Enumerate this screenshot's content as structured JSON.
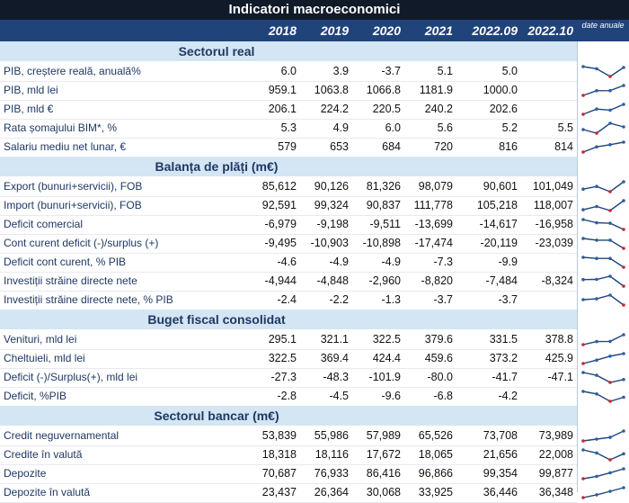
{
  "title": "Indicatori macroeconomici",
  "columns": [
    "2018",
    "2019",
    "2020",
    "2021",
    "2022.09",
    "2022.10"
  ],
  "sparkline_header": "date anuale",
  "colors": {
    "title_bg": "#111a28",
    "header_bg": "#20437a",
    "section_bg": "#d4e6f4",
    "label_text": "#1f3864",
    "spark_line": "#20437a",
    "spark_point": "#2b5fa3",
    "spark_low": "#d0242b"
  },
  "sections": [
    {
      "title": "Sectorul real",
      "rows": [
        {
          "label": "PIB, creștere reală, anuală%",
          "values": [
            "6.0",
            "3.9",
            "-3.7",
            "5.1",
            "5.0",
            ""
          ],
          "spark": [
            6.0,
            3.9,
            -3.7,
            5.1
          ]
        },
        {
          "label": "PIB, mld lei",
          "values": [
            "959.1",
            "1063.8",
            "1066.8",
            "1181.9",
            "1000.0",
            ""
          ],
          "spark": [
            959.1,
            1063.8,
            1066.8,
            1181.9
          ]
        },
        {
          "label": "PIB, mld €",
          "values": [
            "206.1",
            "224.2",
            "220.5",
            "240.2",
            "202.6",
            ""
          ],
          "spark": [
            206.1,
            224.2,
            220.5,
            240.2
          ]
        },
        {
          "label": "Rata șomajului BIM*, %",
          "values": [
            "5.3",
            "4.9",
            "6.0",
            "5.6",
            "5.2",
            "5.5"
          ],
          "spark": [
            5.3,
            4.9,
            6.0,
            5.6
          ]
        },
        {
          "label": "Salariu mediu net lunar, €",
          "values": [
            "579",
            "653",
            "684",
            "720",
            "816",
            "814"
          ],
          "spark": [
            579,
            653,
            684,
            720
          ]
        }
      ]
    },
    {
      "title": "Balanța de plăți (m€)",
      "rows": [
        {
          "label": "Export (bunuri+servicii), FOB",
          "values": [
            "85,612",
            "90,126",
            "81,326",
            "98,079",
            "90,601",
            "101,049"
          ],
          "spark": [
            85612,
            90126,
            81326,
            98079
          ]
        },
        {
          "label": "Import (bunuri+servicii), FOB",
          "values": [
            "92,591",
            "99,324",
            "90,837",
            "111,778",
            "105,218",
            "118,007"
          ],
          "spark": [
            92591,
            99324,
            90837,
            111778
          ]
        },
        {
          "label": "Deficit comercial",
          "values": [
            "-6,979",
            "-9,198",
            "-9,511",
            "-13,699",
            "-14,617",
            "-16,958"
          ],
          "spark": [
            -6979,
            -9198,
            -9511,
            -13699
          ]
        },
        {
          "label": "Cont curent deficit (-)/surplus (+)",
          "values": [
            "-9,495",
            "-10,903",
            "-10,898",
            "-17,474",
            "-20,119",
            "-23,039"
          ],
          "spark": [
            -9495,
            -10903,
            -10898,
            -17474
          ]
        },
        {
          "label": "Deficit cont curent, % PIB",
          "values": [
            "-4.6",
            "-4.9",
            "-4.9",
            "-7.3",
            "-9.9",
            ""
          ],
          "spark": [
            -4.6,
            -4.9,
            -4.9,
            -7.3
          ]
        },
        {
          "label": "Investiții străine directe nete",
          "values": [
            "-4,944",
            "-4,848",
            "-2,960",
            "-8,820",
            "-7,484",
            "-8,324"
          ],
          "spark": [
            -4944,
            -4848,
            -2960,
            -8820
          ]
        },
        {
          "label": "Investiții străine directe nete, % PIB",
          "values": [
            "-2.4",
            "-2.2",
            "-1.3",
            "-3.7",
            "-3.7",
            ""
          ],
          "spark": [
            -2.4,
            -2.2,
            -1.3,
            -3.7
          ]
        }
      ]
    },
    {
      "title": "Buget fiscal consolidat",
      "rows": [
        {
          "label": "Venituri, mld lei",
          "values": [
            "295.1",
            "321.1",
            "322.5",
            "379.6",
            "331.5",
            "378.8"
          ],
          "spark": [
            295.1,
            321.1,
            322.5,
            379.6
          ]
        },
        {
          "label": "Cheltuieli, mld lei",
          "values": [
            "322.5",
            "369.4",
            "424.4",
            "459.6",
            "373.2",
            "425.9"
          ],
          "spark": [
            322.5,
            369.4,
            424.4,
            459.6
          ]
        },
        {
          "label": "Deficit (-)/Surplus(+), mld lei",
          "values": [
            "-27.3",
            "-48.3",
            "-101.9",
            "-80.0",
            "-41.7",
            "-47.1"
          ],
          "spark": [
            -27.3,
            -48.3,
            -101.9,
            -80.0
          ]
        },
        {
          "label": "Deficit, %PIB",
          "values": [
            "-2.8",
            "-4.5",
            "-9.6",
            "-6.8",
            "-4.2",
            ""
          ],
          "spark": [
            -2.8,
            -4.5,
            -9.6,
            -6.8
          ]
        }
      ]
    },
    {
      "title": "Sectorul bancar (m€)",
      "rows": [
        {
          "label": "Credit neguvernamental",
          "values": [
            "53,839",
            "55,986",
            "57,989",
            "65,526",
            "73,708",
            "73,989"
          ],
          "spark": [
            53839,
            55986,
            57989,
            65526
          ]
        },
        {
          "label": "Credite în valută",
          "values": [
            "18,318",
            "18,116",
            "17,672",
            "18,065",
            "21,656",
            "22,008"
          ],
          "spark": [
            18318,
            18116,
            17672,
            18065
          ]
        },
        {
          "label": "Depozite",
          "values": [
            "70,687",
            "76,933",
            "86,416",
            "96,866",
            "99,354",
            "99,877"
          ],
          "spark": [
            70687,
            76933,
            86416,
            96866
          ]
        },
        {
          "label": "Depozite în valută",
          "values": [
            "23,437",
            "26,364",
            "30,068",
            "33,925",
            "36,446",
            "36,348"
          ],
          "spark": [
            23437,
            26364,
            30068,
            33925
          ]
        }
      ]
    }
  ]
}
